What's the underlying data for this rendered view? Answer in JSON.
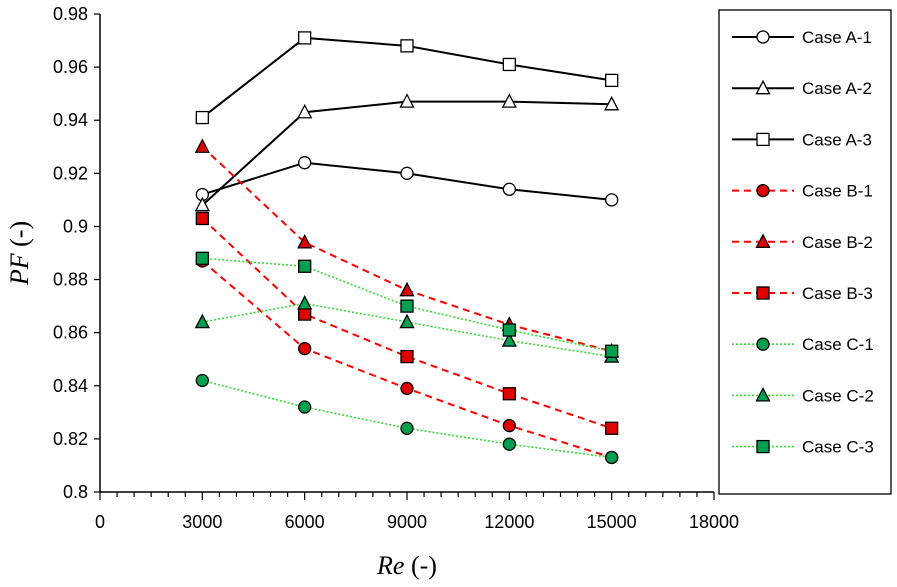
{
  "chart_data": {
    "type": "line",
    "xlabel_italic": "Re",
    "xlabel_rest": " (-)",
    "ylabel_italic": "PF",
    "ylabel_rest": " (-)",
    "xlim": [
      0,
      18000
    ],
    "ylim": [
      0.8,
      0.98
    ],
    "x_ticks": [
      0,
      3000,
      6000,
      9000,
      12000,
      15000,
      18000
    ],
    "x_tick_labels": [
      "0",
      "3000",
      "6000",
      "9000",
      "12000",
      "15000",
      "18000"
    ],
    "y_ticks": [
      0.8,
      0.82,
      0.84,
      0.86,
      0.88,
      0.9,
      0.92,
      0.94,
      0.96,
      0.98
    ],
    "y_tick_labels": [
      "0.8",
      "0.82",
      "0.84",
      "0.86",
      "0.88",
      "0.9",
      "0.92",
      "0.94",
      "0.96",
      "0.98"
    ],
    "grid": false,
    "legend_position": "right",
    "x": [
      3000,
      6000,
      9000,
      12000,
      15000
    ],
    "series": [
      {
        "name": "Case A-1",
        "values": [
          0.912,
          0.924,
          0.92,
          0.914,
          0.91
        ],
        "color": "#000000",
        "fill": "#ffffff",
        "marker": "circle",
        "dash": "solid"
      },
      {
        "name": "Case A-2",
        "values": [
          0.908,
          0.943,
          0.947,
          0.947,
          0.946
        ],
        "color": "#000000",
        "fill": "#ffffff",
        "marker": "triangle",
        "dash": "solid"
      },
      {
        "name": "Case A-3",
        "values": [
          0.941,
          0.971,
          0.968,
          0.961,
          0.955
        ],
        "color": "#000000",
        "fill": "#ffffff",
        "marker": "square",
        "dash": "solid"
      },
      {
        "name": "Case B-1",
        "values": [
          0.887,
          0.854,
          0.839,
          0.825,
          0.813
        ],
        "color": "#ff0000",
        "fill": "#e00000",
        "marker": "circle",
        "dash": "dashed"
      },
      {
        "name": "Case B-2",
        "values": [
          0.93,
          0.894,
          0.876,
          0.863,
          0.853
        ],
        "color": "#ff0000",
        "fill": "#e00000",
        "marker": "triangle",
        "dash": "dashed"
      },
      {
        "name": "Case B-3",
        "values": [
          0.903,
          0.867,
          0.851,
          0.837,
          0.824
        ],
        "color": "#ff0000",
        "fill": "#e00000",
        "marker": "square",
        "dash": "dashed"
      },
      {
        "name": "Case C-1",
        "values": [
          0.842,
          0.832,
          0.824,
          0.818,
          0.813
        ],
        "color": "#33dd33",
        "fill": "#00a050",
        "marker": "circle",
        "dash": "dotted"
      },
      {
        "name": "Case C-2",
        "values": [
          0.864,
          0.871,
          0.864,
          0.857,
          0.851
        ],
        "color": "#33dd33",
        "fill": "#00a050",
        "marker": "triangle",
        "dash": "dotted"
      },
      {
        "name": "Case C-3",
        "values": [
          0.888,
          0.885,
          0.87,
          0.861,
          0.853
        ],
        "color": "#33dd33",
        "fill": "#00a050",
        "marker": "square",
        "dash": "dotted"
      }
    ]
  }
}
